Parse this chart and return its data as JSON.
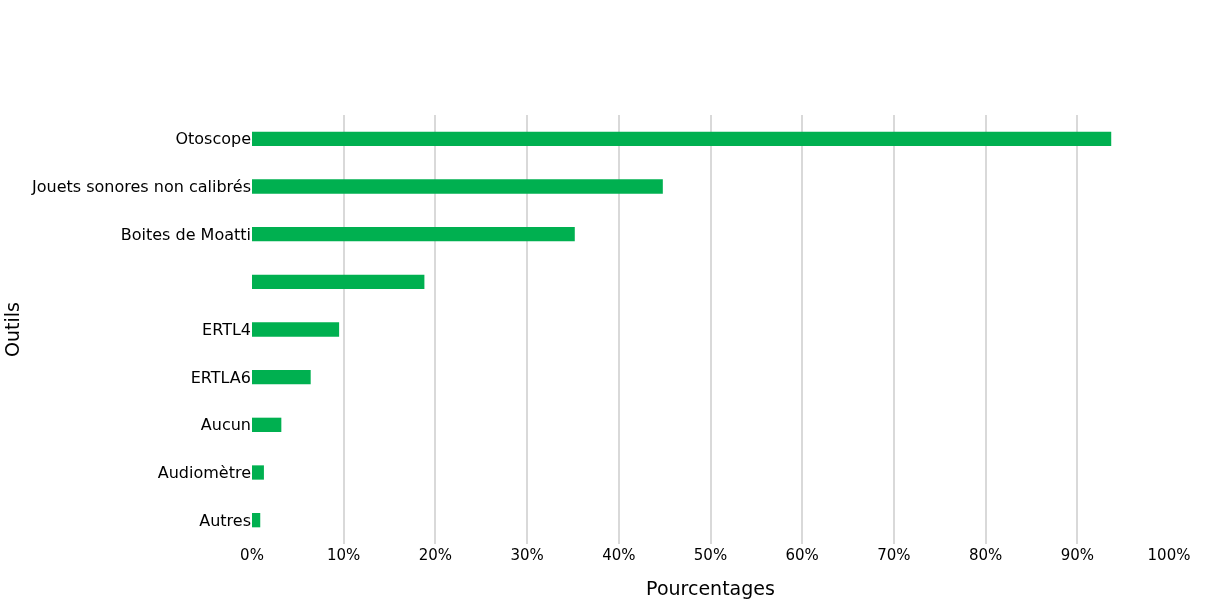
{
  "chart_data": {
    "type": "bar",
    "orientation": "horizontal",
    "xlabel": "Pourcentages",
    "ylabel": "Outils",
    "categories": [
      "Otoscope",
      "Jouets sonores non calibrés",
      "Boites de Moatti",
      null,
      "ERTL4",
      "ERTLA6",
      "Aucun",
      "Audiomètre",
      "Autres"
    ],
    "values": [
      93.7,
      44.8,
      35.2,
      18.8,
      9.5,
      6.4,
      3.2,
      1.3,
      0.9
    ],
    "color": "#00b050",
    "xlim": [
      0,
      100
    ],
    "xticks": [
      {
        "value": 0,
        "label": "0%"
      },
      {
        "value": 10,
        "label": "10%"
      },
      {
        "value": 20,
        "label": "20%"
      },
      {
        "value": 30,
        "label": "30%"
      },
      {
        "value": 40,
        "label": "40%"
      },
      {
        "value": 50,
        "label": "50%"
      },
      {
        "value": 60,
        "label": "60%"
      },
      {
        "value": 70,
        "label": "70%"
      },
      {
        "value": 80,
        "label": "80%"
      },
      {
        "value": 90,
        "label": "90%"
      },
      {
        "value": 100,
        "label": "100%"
      }
    ],
    "grid": "x"
  }
}
